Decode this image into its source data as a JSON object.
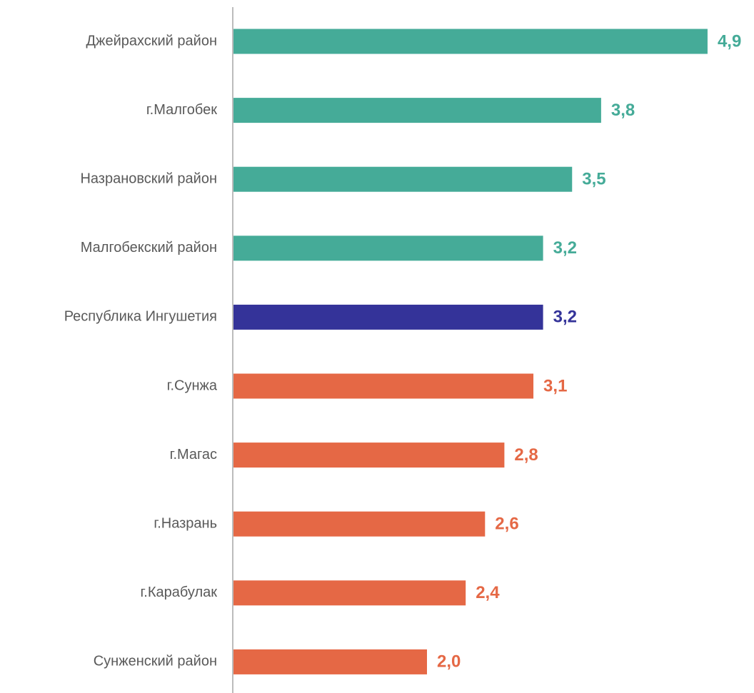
{
  "chart_data": {
    "type": "bar",
    "orientation": "horizontal",
    "categories": [
      "Джейрахский район",
      "г.Малгобек",
      "Назрановский район",
      "Малгобекский район",
      "Республика Ингушетия",
      "г.Сунжа",
      "г.Магас",
      "г.Назрань",
      "г.Карабулак",
      "Сунженский район"
    ],
    "values": [
      4.9,
      3.8,
      3.5,
      3.2,
      3.2,
      3.1,
      2.8,
      2.6,
      2.4,
      2.0
    ],
    "value_labels": [
      "4,9",
      "3,8",
      "3,5",
      "3,2",
      "3,2",
      "3,1",
      "2,8",
      "2,6",
      "2,4",
      "2,0"
    ],
    "colors": [
      "#45ab98",
      "#45ab98",
      "#45ab98",
      "#45ab98",
      "#343399",
      "#e56845",
      "#e56845",
      "#e56845",
      "#e56845",
      "#e56845"
    ]
  }
}
